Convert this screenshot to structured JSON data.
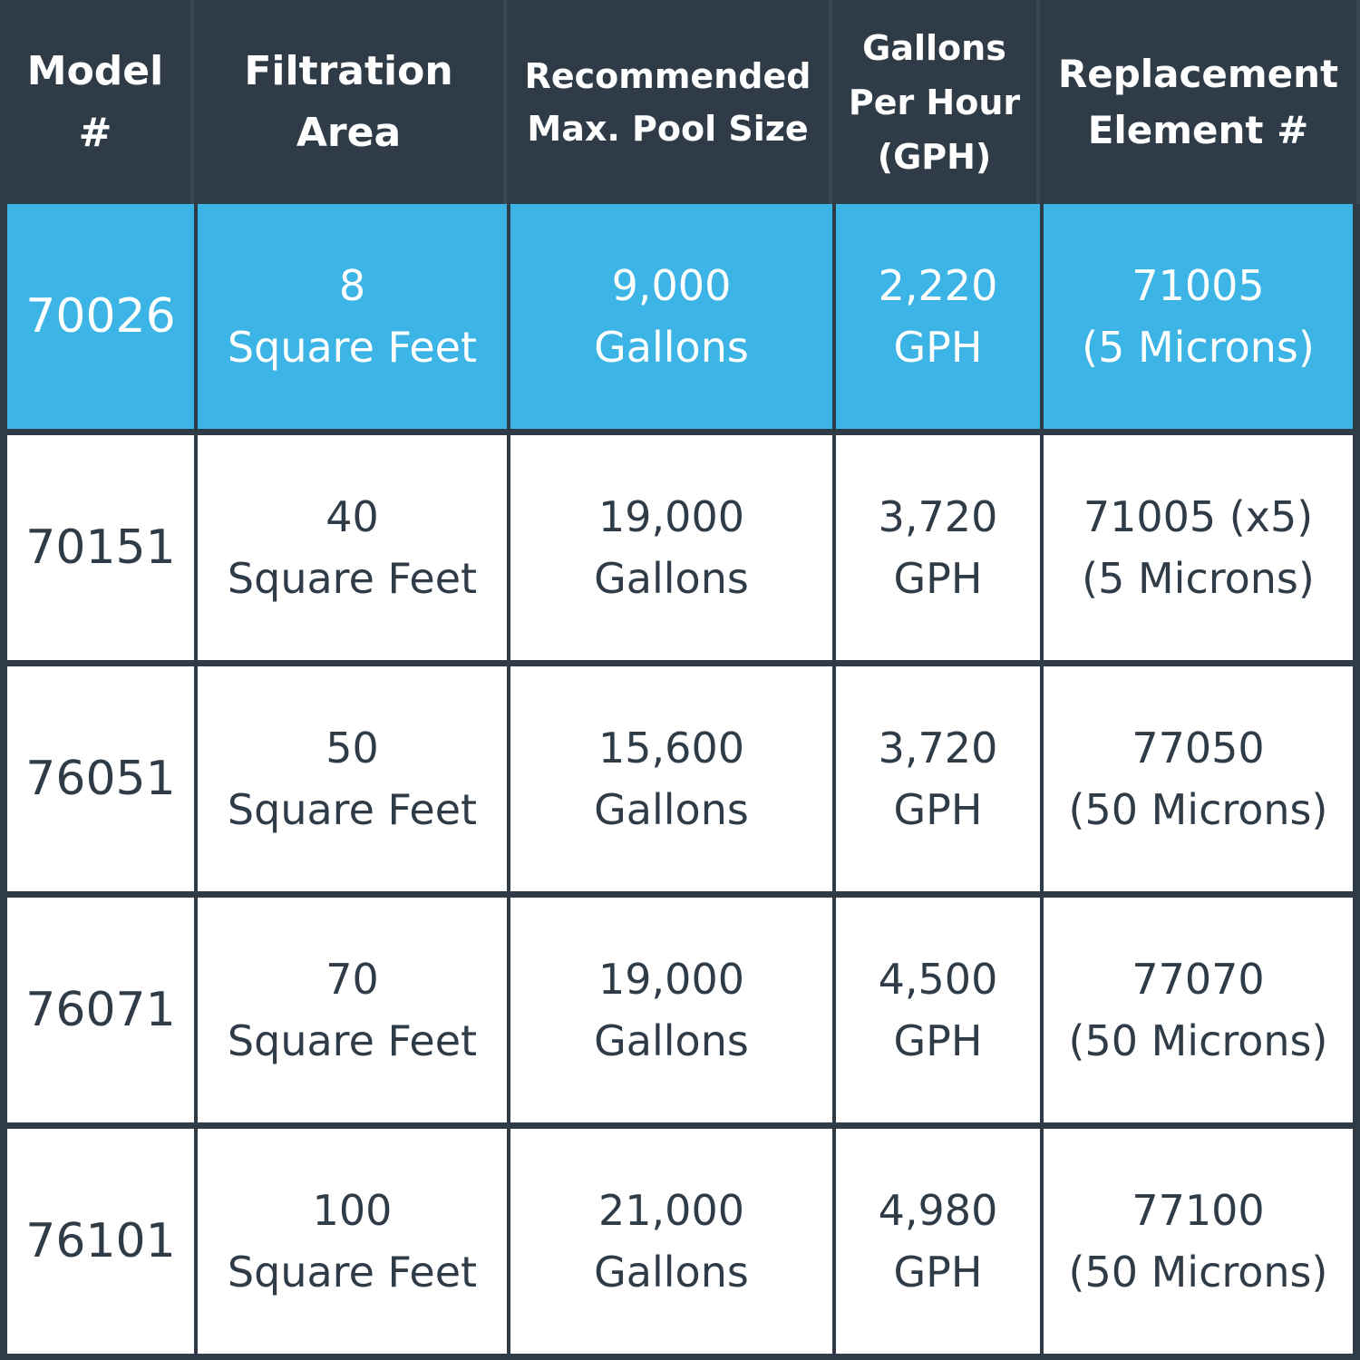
{
  "headers": {
    "model": [
      "Model",
      "#"
    ],
    "filtration": [
      "Filtration",
      "Area"
    ],
    "recommended": [
      "Recommended",
      "Max. Pool Size"
    ],
    "gph": [
      "Gallons",
      "Per Hour",
      "(GPH)"
    ],
    "replacement": [
      "Replacement",
      "Element #"
    ]
  },
  "rows": [
    {
      "highlight": true,
      "model": "70026",
      "filtration": [
        "8",
        "Square Feet"
      ],
      "pool_size": [
        "9,000",
        "Gallons"
      ],
      "gph": [
        "2,220",
        "GPH"
      ],
      "replacement": [
        "71005",
        "(5 Microns)"
      ]
    },
    {
      "highlight": false,
      "model": "70151",
      "filtration": [
        "40",
        "Square Feet"
      ],
      "pool_size": [
        "19,000",
        "Gallons"
      ],
      "gph": [
        "3,720",
        "GPH"
      ],
      "replacement": [
        "71005 (x5)",
        "(5 Microns)"
      ]
    },
    {
      "highlight": false,
      "model": "76051",
      "filtration": [
        "50",
        "Square Feet"
      ],
      "pool_size": [
        "15,600",
        "Gallons"
      ],
      "gph": [
        "3,720",
        "GPH"
      ],
      "replacement": [
        "77050",
        "(50 Microns)"
      ]
    },
    {
      "highlight": false,
      "model": "76071",
      "filtration": [
        "70",
        "Square Feet"
      ],
      "pool_size": [
        "19,000",
        "Gallons"
      ],
      "gph": [
        "4,500",
        "GPH"
      ],
      "replacement": [
        "77070",
        "(50 Microns)"
      ]
    },
    {
      "highlight": false,
      "model": "76101",
      "filtration": [
        "100",
        "Square Feet"
      ],
      "pool_size": [
        "21,000",
        "Gallons"
      ],
      "gph": [
        "4,980",
        "GPH"
      ],
      "replacement": [
        "77100",
        "(50 Microns)"
      ]
    }
  ],
  "colors": {
    "header_bg": "#2f3c48",
    "highlight_bg": "#3cb4e5",
    "cell_bg": "#ffffff",
    "text_dark": "#2f3c48",
    "text_light": "#ffffff"
  }
}
